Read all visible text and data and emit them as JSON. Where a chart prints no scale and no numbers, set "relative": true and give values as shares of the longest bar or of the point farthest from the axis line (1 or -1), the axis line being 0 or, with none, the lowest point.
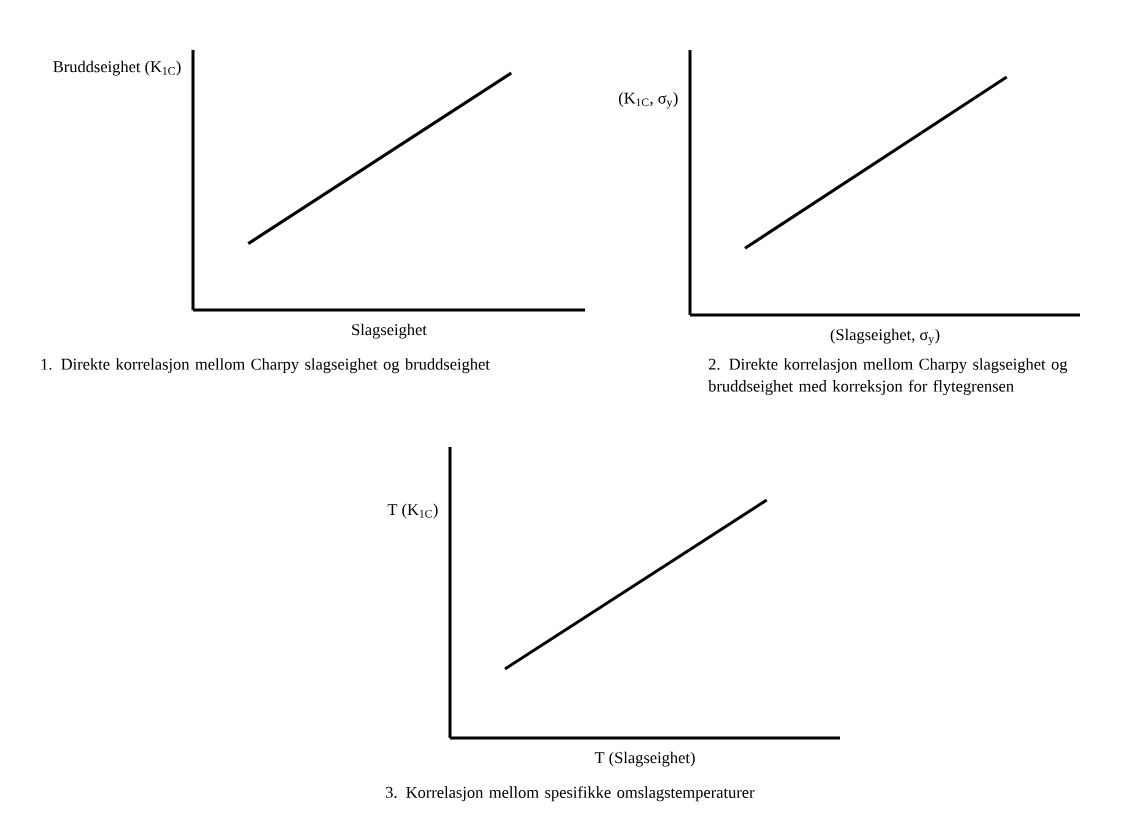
{
  "chart_data": [
    {
      "type": "line",
      "relative": true,
      "categories": [
        null,
        null
      ],
      "values": [
        0.28,
        1
      ],
      "color": "#000000",
      "ylabel": "Bruddseighet (K$_{1C}$)",
      "xlabel": "Slagseighet",
      "annotations": [
        "1. Direkte korrelasjon mellom Charpy slagseighet og bruddseighet"
      ]
    },
    {
      "type": "line",
      "relative": true,
      "categories": [
        null,
        null
      ],
      "values": [
        0.28,
        1
      ],
      "color": "#000000",
      "ylabel": "(K$_{1C}$, σ$_{y}$)",
      "xlabel": "(Slagseighet, σ$_{y}$)",
      "annotations": [
        "2. Direkte korrelasjon mellom Charpy slagseighet og bruddseighet med korreksjon for flytegrensen"
      ]
    },
    {
      "type": "line",
      "relative": true,
      "categories": [
        null,
        null
      ],
      "values": [
        0.29,
        1
      ],
      "color": "#000000",
      "ylabel": "T (K$_{1C}$)",
      "xlabel": "T (Slagseighet)",
      "annotations": [
        "3. Korrelasjon mellom spesifikke omslagstemperaturer"
      ]
    }
  ]
}
